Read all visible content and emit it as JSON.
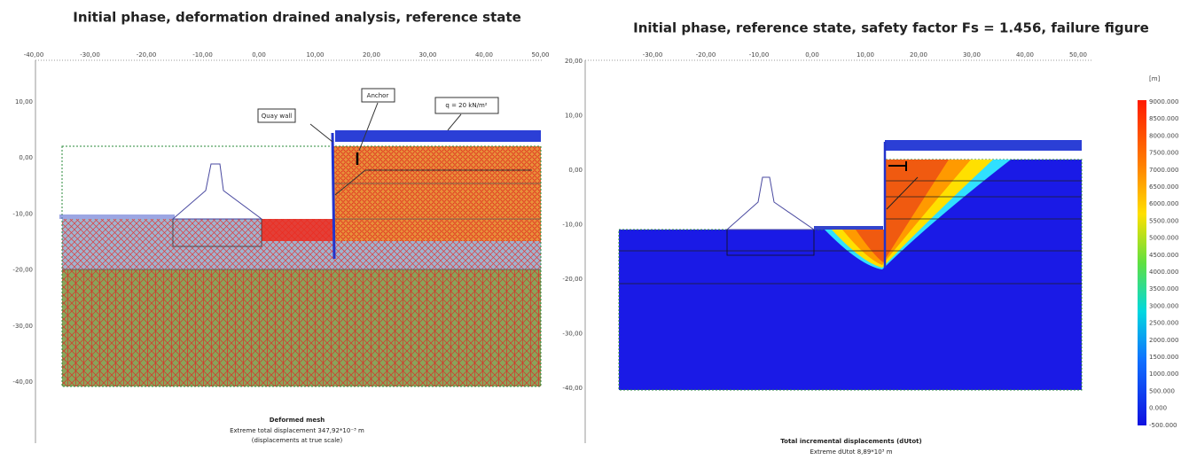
{
  "left_panel": {
    "title": "Initial phase, deformation drained analysis, reference state",
    "x_ticks": [
      "-40,00",
      "-30,00",
      "-20,00",
      "-10,00",
      "0,00",
      "10,00",
      "20,00",
      "30,00",
      "40,00",
      "50,00"
    ],
    "y_ticks": [
      "10,00",
      "0,00",
      "-10,00",
      "-20,00",
      "-30,00",
      "-40,00"
    ],
    "annotations": {
      "quay_wall": "Quay wall",
      "anchor": "Anchor",
      "load": "q = 20 kN/m²"
    },
    "caption": {
      "title": "Deformed mesh",
      "line1": "Extreme total displacement 347,92*10⁻³ m",
      "line2": "(displacements at true scale)"
    }
  },
  "right_panel": {
    "title": "Initial phase, reference state, safety factor Fs = 1.456, failure figure",
    "x_ticks": [
      "-30,00",
      "-20,00",
      "-10,00",
      "0,00",
      "10,00",
      "20,00",
      "30,00",
      "40,00",
      "50,00"
    ],
    "y_ticks": [
      "20,00",
      "10,00",
      "0,00",
      "-10,00",
      "-20,00",
      "-30,00",
      "-40,00"
    ],
    "legend": {
      "unit": "[m]",
      "labels": [
        "9000.000",
        "8500.000",
        "8000.000",
        "7500.000",
        "7000.000",
        "6500.000",
        "6000.000",
        "5500.000",
        "5000.000",
        "4500.000",
        "4000.000",
        "3500.000",
        "3000.000",
        "2500.000",
        "2000.000",
        "1500.000",
        "1000.000",
        "500.000",
        "0.000",
        "-500.000"
      ]
    },
    "caption": {
      "title": "Total incremental displacements (dUtot)",
      "line1": "Extreme dUtot 8,89*10³ m"
    }
  }
}
